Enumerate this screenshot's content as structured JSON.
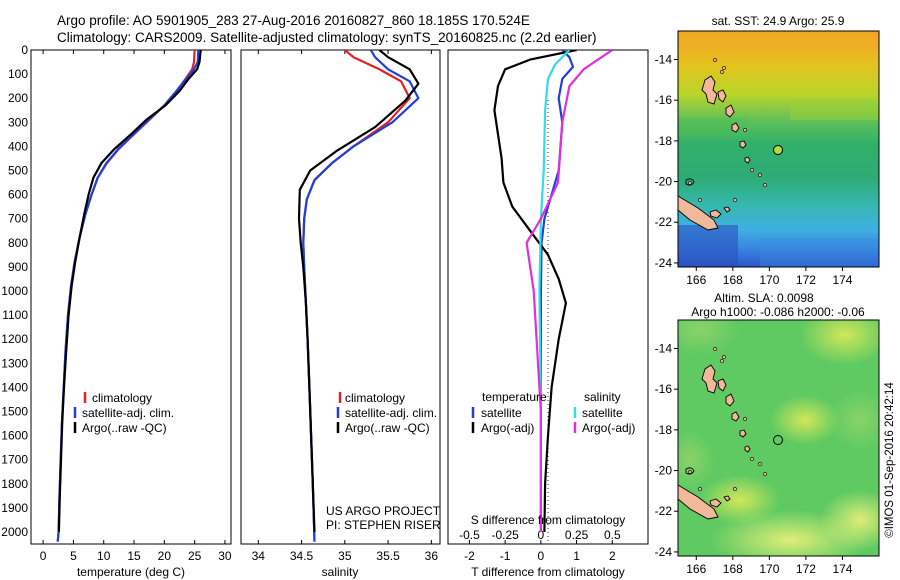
{
  "header": {
    "title_line1": "Argo profile: AO 5901905_283 27-Aug-2016 20160827_860 18.185S 170.524E",
    "title_line2": "Climatology: CARS2009. Satellite-adjusted climatology: synTS_20160825.nc (2.2d earlier)"
  },
  "credit": "©IMOS 01-Sep-2016 20:42:14",
  "project_note": {
    "line1": "US ARGO PROJECT",
    "line2": "PI: STEPHEN RISER"
  },
  "colors": {
    "climatology": "#e32222",
    "satellite": "#1f3fdd",
    "argo": "#000000",
    "salinity_satellite": "#33dde6",
    "salinity_argo": "#e22ee0"
  },
  "panels": {
    "temperature": {
      "xlabel": "temperature (deg C)",
      "xticks": [
        "0",
        "5",
        "10",
        "15",
        "20",
        "25",
        "30"
      ],
      "legend": [
        "climatology",
        "satellite-adj. clim.",
        "Argo(..raw -QC)"
      ]
    },
    "salinity": {
      "xlabel": "salinity",
      "xticks": [
        "34",
        "34.5",
        "35",
        "35.5",
        "36"
      ],
      "legend": [
        "climatology",
        "satellite-adj. clim.",
        "Argo(..raw -QC)"
      ]
    },
    "difference": {
      "xlabel_bottom": "T difference from climatology",
      "xlabel_top": "S difference from climatology",
      "xticks_T": [
        "-2",
        "-1",
        "0",
        "1",
        "2"
      ],
      "xticks_S": [
        "-0.5",
        "-0.25",
        "0",
        "0.25",
        "0.5"
      ],
      "legend_temp_title": "temperature",
      "legend_sal_title": "salinity",
      "legend_temp": [
        "satellite",
        "Argo(-adj)"
      ],
      "legend_sal": [
        "satellite",
        "Argo(-adj)"
      ]
    },
    "depth_ticks": [
      "0",
      "100",
      "200",
      "300",
      "400",
      "500",
      "600",
      "700",
      "800",
      "900",
      "1000",
      "1100",
      "1200",
      "1300",
      "1400",
      "1500",
      "1600",
      "1700",
      "1800",
      "1900",
      "2000"
    ]
  },
  "maps": {
    "sst": {
      "title": "sat. SST: 24.9 Argo: 25.9"
    },
    "sla": {
      "title_line1": "Altim. SLA: 0.0098",
      "title_line2": "Argo h1000: -0.086 h2000: -0.06"
    },
    "lon_ticks": [
      "166",
      "168",
      "170",
      "172",
      "174"
    ],
    "lat_ticks": [
      "-14",
      "-16",
      "-18",
      "-20",
      "-22",
      "-24"
    ],
    "float_position": {
      "lon": 170.524,
      "lat": -18.185
    }
  },
  "chart_data": [
    {
      "type": "line",
      "name": "temperature profile",
      "xlabel": "temperature (deg C)",
      "ylabel": "",
      "xlim": [
        -2,
        31
      ],
      "ylim": [
        2050,
        0
      ],
      "series": [
        {
          "name": "climatology",
          "x": [
            25.0,
            24.9,
            24.6,
            23.5,
            22.0,
            20.0,
            17.5,
            15.0,
            12.5,
            10.5,
            9.0,
            8.0,
            7.0,
            6.0,
            5.2,
            4.6,
            4.1,
            3.7,
            3.4,
            3.1,
            2.9,
            2.7,
            2.55,
            2.4
          ],
          "y": [
            0,
            50,
            80,
            120,
            170,
            230,
            290,
            350,
            410,
            470,
            530,
            600,
            680,
            780,
            880,
            980,
            1100,
            1250,
            1400,
            1550,
            1700,
            1850,
            2000,
            2040
          ]
        },
        {
          "name": "satellite-adj. clim.",
          "x": [
            25.6,
            25.5,
            24.9,
            23.6,
            22.0,
            20.0,
            17.4,
            14.9,
            12.4,
            10.4,
            9.0,
            8.0,
            7.0,
            6.0,
            5.2,
            4.6,
            4.1,
            3.7,
            3.4,
            3.1,
            2.9,
            2.7,
            2.55,
            2.4
          ],
          "y": [
            0,
            50,
            80,
            120,
            170,
            230,
            290,
            350,
            410,
            470,
            530,
            600,
            680,
            780,
            880,
            980,
            1100,
            1250,
            1400,
            1550,
            1700,
            1850,
            2000,
            2040
          ]
        },
        {
          "name": "Argo(..raw -QC)",
          "x": [
            26.0,
            25.8,
            25.4,
            24.0,
            22.5,
            20.2,
            17.0,
            14.5,
            11.8,
            9.6,
            8.3,
            7.5,
            6.8,
            6.0,
            5.3,
            4.7,
            4.2,
            3.8,
            3.45,
            3.15,
            2.95,
            2.75,
            2.6
          ],
          "y": [
            0,
            50,
            80,
            120,
            170,
            230,
            290,
            350,
            410,
            470,
            530,
            600,
            680,
            780,
            880,
            980,
            1100,
            1250,
            1400,
            1550,
            1700,
            1850,
            2000
          ]
        }
      ]
    },
    {
      "type": "line",
      "name": "salinity profile",
      "xlabel": "salinity",
      "ylabel": "",
      "xlim": [
        33.8,
        36.1
      ],
      "ylim": [
        2050,
        0
      ],
      "series": [
        {
          "name": "climatology",
          "x": [
            35.0,
            35.1,
            35.4,
            35.65,
            35.75,
            35.5,
            35.1,
            34.85,
            34.65,
            34.56,
            34.53,
            34.52,
            34.53,
            34.55,
            34.57,
            34.59,
            34.61,
            34.63,
            34.65
          ],
          "y": [
            0,
            30,
            80,
            130,
            200,
            300,
            400,
            470,
            540,
            620,
            700,
            800,
            900,
            1050,
            1200,
            1400,
            1600,
            1800,
            2040
          ]
        },
        {
          "name": "satellite-adj. clim.",
          "x": [
            35.3,
            35.35,
            35.5,
            35.75,
            35.85,
            35.55,
            35.1,
            34.85,
            34.65,
            34.56,
            34.53,
            34.52,
            34.53,
            34.55,
            34.57,
            34.59,
            34.61,
            34.63,
            34.65
          ],
          "y": [
            0,
            30,
            80,
            130,
            200,
            300,
            400,
            470,
            540,
            620,
            700,
            800,
            900,
            1050,
            1200,
            1400,
            1600,
            1800,
            2040
          ]
        },
        {
          "name": "Argo(..raw -QC)",
          "x": [
            35.4,
            35.5,
            35.75,
            35.85,
            35.7,
            35.35,
            34.9,
            34.6,
            34.48,
            34.47,
            34.49,
            34.52,
            34.55,
            34.57,
            34.59,
            34.61,
            34.63,
            34.65
          ],
          "y": [
            0,
            30,
            80,
            140,
            210,
            320,
            420,
            500,
            580,
            700,
            800,
            900,
            1050,
            1200,
            1400,
            1600,
            1800,
            2000
          ]
        }
      ]
    },
    {
      "type": "line",
      "name": "difference from climatology",
      "xlabel": "T difference from climatology",
      "x2label": "S difference from climatology",
      "ylabel": "",
      "xlim": [
        -2.6,
        3.0
      ],
      "x2lim": [
        -0.65,
        0.75
      ],
      "ylim": [
        2050,
        0
      ],
      "series": [
        {
          "name": "temperature satellite",
          "axis": "T",
          "x": [
            0.6,
            0.8,
            0.9,
            0.6,
            0.5,
            0.6,
            0.55,
            0.5,
            0.3,
            0.1,
            0.02,
            0.0,
            0.0,
            0.0
          ],
          "y": [
            0,
            30,
            70,
            120,
            200,
            300,
            400,
            500,
            600,
            700,
            800,
            1000,
            1500,
            2000
          ]
        },
        {
          "name": "temperature Argo(-adj)",
          "axis": "T",
          "x": [
            1.0,
            -0.3,
            -1.0,
            -1.2,
            -1.3,
            -1.2,
            -1.1,
            -1.05,
            -0.8,
            -0.3,
            0.2,
            0.5,
            0.7,
            0.5,
            0.3,
            0.2,
            0.12,
            0.1
          ],
          "y": [
            0,
            40,
            80,
            150,
            250,
            350,
            450,
            550,
            650,
            750,
            850,
            950,
            1050,
            1200,
            1400,
            1600,
            1800,
            2000
          ]
        },
        {
          "name": "salinity satellite",
          "axis": "S",
          "x": [
            0.2,
            0.1,
            0.05,
            0.03,
            0.02,
            0.0,
            -0.01,
            0.0,
            0.0
          ],
          "y": [
            0,
            60,
            120,
            250,
            500,
            700,
            1000,
            1500,
            2000
          ]
        },
        {
          "name": "salinity Argo(-adj)",
          "axis": "S",
          "x": [
            0.5,
            0.4,
            0.3,
            0.2,
            0.15,
            0.12,
            0.0,
            -0.1,
            -0.05,
            0.0,
            0.0
          ],
          "y": [
            0,
            40,
            80,
            150,
            300,
            550,
            700,
            800,
            1000,
            1500,
            2000
          ]
        }
      ]
    }
  ]
}
